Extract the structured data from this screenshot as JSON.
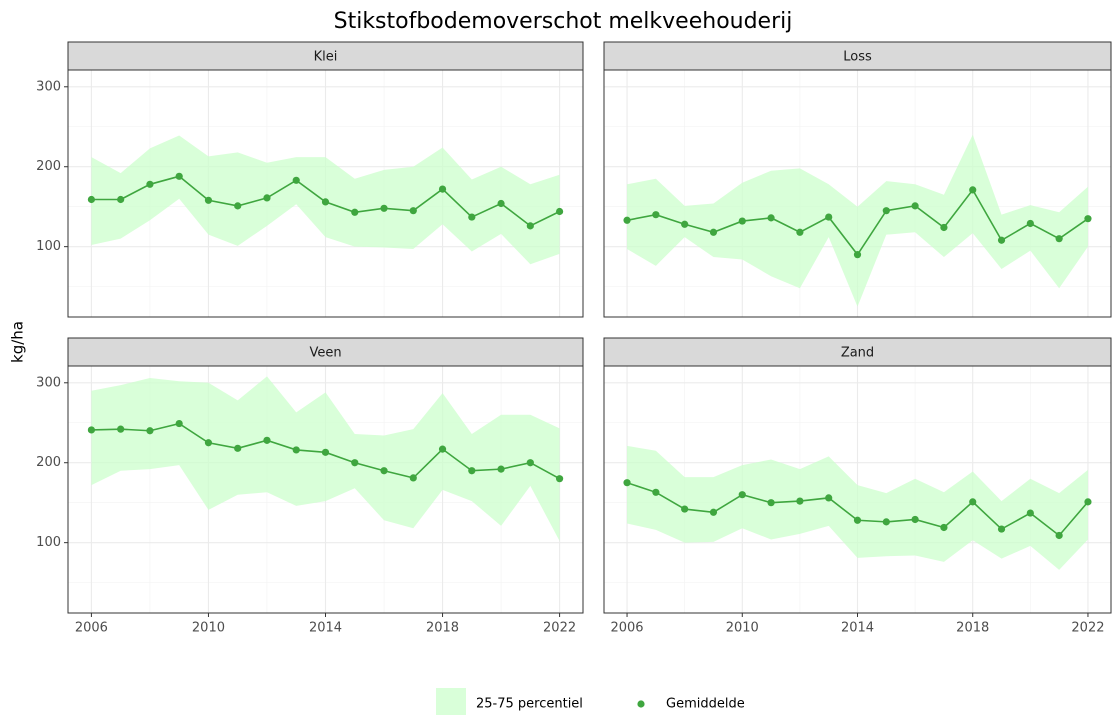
{
  "chart_data": {
    "type": "line",
    "title": "Stikstofbodemoverschot melkveehouderij",
    "y_label": "kg/ha",
    "x": [
      2006,
      2007,
      2008,
      2009,
      2010,
      2011,
      2012,
      2013,
      2014,
      2015,
      2016,
      2017,
      2018,
      2019,
      2020,
      2021,
      2022
    ],
    "xlim": [
      2005.2,
      2022.8
    ],
    "xticks": [
      2006,
      2010,
      2014,
      2018,
      2022
    ],
    "minor_xticks": [
      2008,
      2012,
      2016,
      2020
    ],
    "ylim": [
      12,
      321
    ],
    "yticks": [
      100,
      200,
      300
    ],
    "minor_yticks": [
      50,
      150,
      250
    ],
    "grid": true,
    "band": {
      "name": "25-75 percentiel",
      "color": "#ccffcc"
    },
    "mean": {
      "name": "Gemiddelde",
      "color": "#3fa63f"
    },
    "facets": [
      {
        "title": "Klei",
        "mean": [
          159,
          159,
          178,
          188,
          158,
          151,
          161,
          183,
          156,
          143,
          148,
          145,
          172,
          137,
          154,
          126,
          144
        ],
        "upper": [
          212,
          192,
          223,
          239,
          213,
          218,
          205,
          212,
          212,
          185,
          196,
          200,
          224,
          184,
          200,
          178,
          190
        ],
        "lower": [
          102,
          110,
          133,
          160,
          115,
          101,
          126,
          153,
          112,
          100,
          99,
          97,
          128,
          94,
          116,
          78,
          91
        ]
      },
      {
        "title": "Loss",
        "mean": [
          133,
          140,
          128,
          118,
          132,
          136,
          118,
          137,
          90,
          145,
          151,
          124,
          171,
          108,
          129,
          110,
          135
        ],
        "upper": [
          178,
          185,
          151,
          154,
          180,
          195,
          198,
          178,
          150,
          182,
          178,
          165,
          240,
          140,
          152,
          143,
          175
        ],
        "lower": [
          97,
          76,
          112,
          87,
          84,
          63,
          48,
          112,
          25,
          115,
          118,
          87,
          117,
          72,
          95,
          48,
          100
        ]
      },
      {
        "title": "Veen",
        "mean": [
          241,
          242,
          240,
          249,
          225,
          218,
          228,
          216,
          213,
          200,
          190,
          181,
          217,
          190,
          192,
          200,
          180
        ],
        "upper": [
          290,
          297,
          306,
          302,
          300,
          278,
          308,
          263,
          288,
          236,
          234,
          242,
          287,
          236,
          260,
          260,
          243
        ],
        "lower": [
          172,
          190,
          192,
          197,
          141,
          160,
          163,
          146,
          152,
          168,
          128,
          118,
          166,
          152,
          121,
          171,
          102
        ]
      },
      {
        "title": "Zand",
        "mean": [
          175,
          163,
          142,
          138,
          160,
          150,
          152,
          156,
          128,
          126,
          129,
          119,
          151,
          117,
          137,
          109,
          151
        ],
        "upper": [
          221,
          215,
          182,
          182,
          197,
          204,
          192,
          208,
          172,
          162,
          180,
          163,
          189,
          152,
          180,
          162,
          191
        ],
        "lower": [
          124,
          116,
          100,
          101,
          118,
          104,
          111,
          121,
          81,
          83,
          84,
          76,
          103,
          80,
          96,
          66,
          104
        ]
      }
    ]
  }
}
